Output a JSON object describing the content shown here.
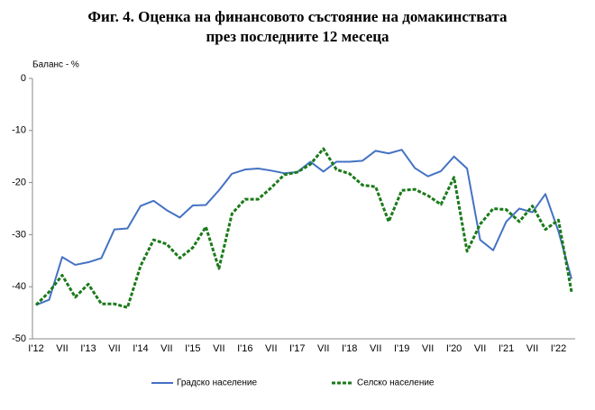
{
  "chart_data": {
    "type": "line",
    "title": [
      "Фиг. 4. Оценка на финансовото състояние на домакинствата",
      "през последните 12 месеца"
    ],
    "y_label": "Баланс - %",
    "categories": [
      "I'12",
      null,
      "VII",
      null,
      "I'13",
      null,
      "VII",
      null,
      "I'14",
      null,
      "VII",
      null,
      "I'15",
      null,
      "VII",
      null,
      "I'16",
      null,
      "VII",
      null,
      "I'17",
      null,
      "VII",
      null,
      "I'18",
      null,
      "VII",
      null,
      "I'19",
      null,
      "VII",
      null,
      "I'20",
      null,
      "VII",
      null,
      "I'21",
      null,
      "VII",
      null,
      "I'22",
      null
    ],
    "series": [
      {
        "name": "Градско население",
        "color": "#4472c4",
        "dash": false,
        "values": [
          -43.5,
          -42.5,
          -34.3,
          -35.8,
          -35.3,
          -34.5,
          -29,
          -28.8,
          -24.5,
          -23.5,
          -25.3,
          -26.7,
          -24.4,
          -24.3,
          -21.5,
          -18.3,
          -17.5,
          -17.3,
          -17.7,
          -18.2,
          -18,
          -16,
          -17.9,
          -16,
          -16,
          -15.8,
          -13.9,
          -14.4,
          -13.7,
          -17.2,
          -18.8,
          -17.8,
          -15,
          -17.3,
          -31,
          -33,
          -27.5,
          -25,
          -25.7,
          -22.2,
          -29.4,
          -38.5
        ]
      },
      {
        "name": "Селско население",
        "color": "#1a7a1a",
        "dash": true,
        "values": [
          -43.5,
          -41,
          -37.8,
          -42,
          -39.5,
          -43.3,
          -43.3,
          -44,
          -36,
          -31,
          -31.8,
          -34.5,
          -32.5,
          -28.5,
          -36.5,
          -26,
          -23.2,
          -23.2,
          -21,
          -18.5,
          -18,
          -16.5,
          -13.5,
          -17.5,
          -18.3,
          -20.5,
          -20.8,
          -27.5,
          -21.5,
          -21.3,
          -22.5,
          -24.2,
          -19,
          -33.2,
          -28,
          -25,
          -25.2,
          -27.5,
          -24.5,
          -29,
          -27.2,
          -41
        ]
      }
    ],
    "ylim": [
      -50,
      0
    ],
    "yticks": [
      0,
      -10,
      -20,
      -30,
      -40,
      -50
    ],
    "grid": false
  }
}
